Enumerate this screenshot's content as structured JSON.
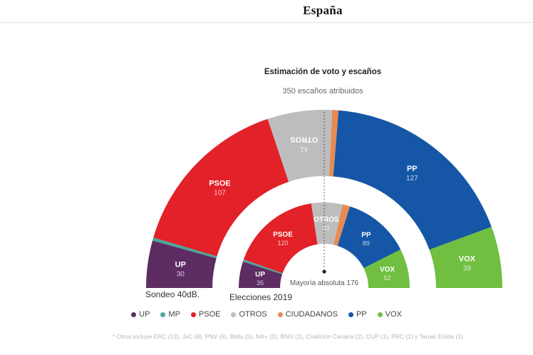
{
  "page": {
    "title": "España"
  },
  "chart": {
    "title": "Estimación de voto y escaños",
    "subtitle": "350 escaños atribuidos",
    "majority_label": "Mayoría absoluta 176",
    "footnote": "* Otros incluye ERC (13), JxC (8), PNV (6), Bildu (5), NA+ (2), BNG (2), Coalición Canaria (2), CUP (1), PRC (1) y Teruel Existe (1)"
  },
  "chart_data": {
    "type": "hemicycle-donut",
    "title": "Estimación de voto y escaños",
    "subtitle": "350 escaños atribuidos",
    "total_seats": 350,
    "majority_seats": 176,
    "party_order": [
      "UP",
      "MP",
      "PSOE",
      "OTROS",
      "CIUDADANOS",
      "PP",
      "VOX"
    ],
    "party_colors": {
      "UP": "#5d2c63",
      "MP": "#4ba69b",
      "PSOE": "#e22128",
      "OTROS": "#bdbdbd",
      "CIUDADANOS": "#e78a54",
      "PP": "#1557a6",
      "VOX": "#70bf41"
    },
    "series": [
      {
        "name": "Sondeo 40dB.",
        "ring": "outer",
        "values": {
          "UP": 30,
          "MP": 2,
          "PSOE": 107,
          "OTROS": 41,
          "CIUDADANOS": 4,
          "PP": 127,
          "VOX": 39
        },
        "labeled": [
          "UP",
          "PSOE",
          "OTROS",
          "PP",
          "VOX"
        ],
        "flipped_labels": [
          "OTROS"
        ]
      },
      {
        "name": "Elecciones 2019",
        "ring": "inner",
        "values": {
          "UP": 35,
          "MP": 3,
          "PSOE": 120,
          "OTROS": 41,
          "CIUDADANOS": 10,
          "PP": 89,
          "VOX": 52
        },
        "labeled": [
          "UP",
          "PSOE",
          "OTROS",
          "PP",
          "VOX"
        ],
        "flipped_labels": []
      }
    ],
    "legend_position": "bottom",
    "grid": false
  }
}
